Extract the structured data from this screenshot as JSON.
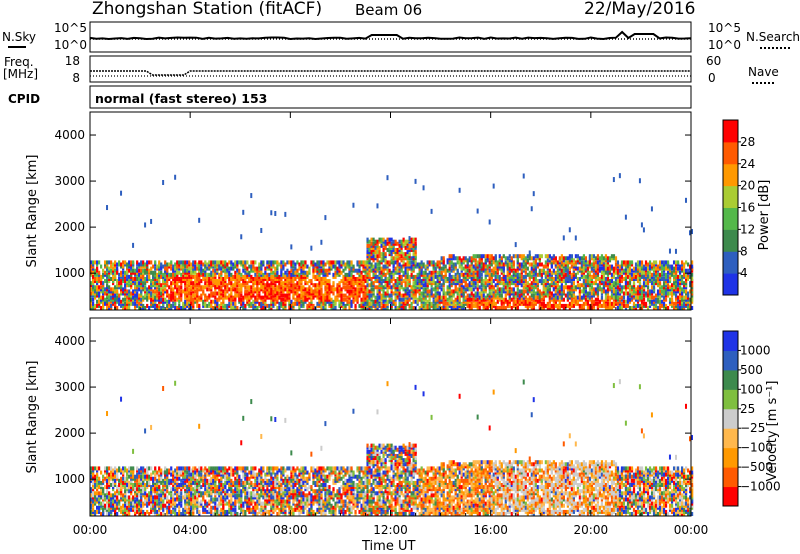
{
  "header": {
    "station": "Zhongshan Station (fitACF)",
    "beam": "Beam 06",
    "date": "22/May/2016"
  },
  "labels": {
    "nsky": "N.Sky",
    "nsearch": "N.Search",
    "freq_line1": "Freq.",
    "freq_line2": "[MHz]",
    "nave": "Nave",
    "cpid": "CPID",
    "mode": "normal (fast stereo) 153",
    "ylabel": "Slant Range [km]",
    "xlabel": "Time UT",
    "power_bar_label": "Power [dB]",
    "velocity_bar_label": "Velocity [m s⁻¹]"
  },
  "noise_ticks": {
    "left": [
      "10^5",
      "10^0"
    ],
    "right": [
      "10^5",
      "10^0"
    ]
  },
  "freq_ticks": {
    "left": [
      "18",
      "8"
    ],
    "right": [
      "60",
      "0"
    ]
  },
  "colors": {
    "power": [
      "#1f33e6",
      "#2e5fbf",
      "#3d8a4d",
      "#54b84a",
      "#aacc33",
      "#ff9900",
      "#ff5a00",
      "#ff0000"
    ],
    "velocity": [
      "#ff0000",
      "#ff5a00",
      "#ff9900",
      "#ffb84d",
      "#cccccc",
      "#7fbf3f",
      "#3d8a4d",
      "#2e5fbf",
      "#1f33e6"
    ]
  },
  "chart_data": [
    {
      "type": "heatmap",
      "name": "power",
      "x_ticks": [
        "00:00",
        "04:00",
        "08:00",
        "12:00",
        "16:00",
        "20:00",
        "00:00"
      ],
      "y_ticks": [
        1000,
        2000,
        3000,
        4000
      ],
      "ylim": [
        200,
        4500
      ],
      "xlim_hours": [
        0,
        24
      ],
      "colorbar_ticks": [
        "4",
        "8",
        "12",
        "16",
        "20",
        "24",
        "28"
      ]
    },
    {
      "type": "heatmap",
      "name": "velocity",
      "x_ticks": [
        "00:00",
        "04:00",
        "08:00",
        "12:00",
        "16:00",
        "20:00",
        "00:00"
      ],
      "y_ticks": [
        1000,
        2000,
        3000,
        4000
      ],
      "ylim": [
        200,
        4500
      ],
      "xlim_hours": [
        0,
        24
      ],
      "colorbar_ticks": [
        "1000",
        "500",
        "100",
        "25",
        "−25",
        "−100",
        "−500",
        "−1000"
      ]
    }
  ]
}
